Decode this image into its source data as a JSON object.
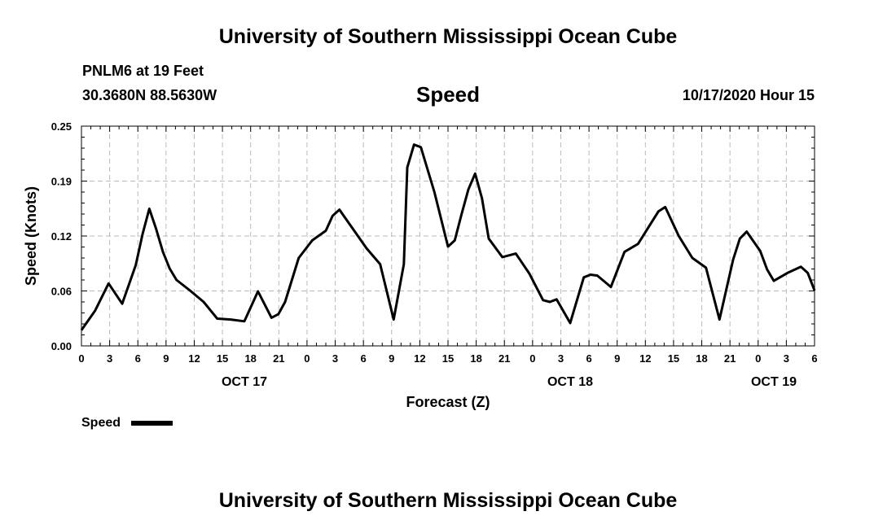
{
  "header": {
    "title": "University of Southern Mississippi Ocean Cube",
    "station": "PNLM6 at 19 Feet",
    "coords": "30.3680N 88.5630W",
    "plot_title": "Speed",
    "datetime": "10/17/2020 Hour 15"
  },
  "footer": {
    "title": "University of Southern Mississippi Ocean Cube"
  },
  "colors": {
    "line": "#000000",
    "grid": "#bbbbbb",
    "axis": "#000000",
    "background": "#ffffff"
  },
  "chart_data": {
    "type": "line",
    "title": "Speed",
    "xlabel": "Forecast (Z)",
    "ylabel": "Speed (Knots)",
    "ylim": [
      0,
      0.25
    ],
    "xlim": [
      "2020-10-17T00:00Z",
      "2020-10-19T06:00Z"
    ],
    "yticks": [
      "0.00",
      "0.06",
      "0.12",
      "0.19",
      "0.25"
    ],
    "xticks": [
      "0",
      "3",
      "6",
      "9",
      "12",
      "15",
      "18",
      "21",
      "0",
      "3",
      "6",
      "9",
      "12",
      "15",
      "18",
      "21",
      "0",
      "3",
      "6",
      "9",
      "12",
      "15",
      "18",
      "21",
      "0",
      "3",
      "6"
    ],
    "date_labels": [
      {
        "label": "OCT 17",
        "x": "2020-10-17T12:00Z"
      },
      {
        "label": "OCT 18",
        "x": "2020-10-18T12:00Z"
      },
      {
        "label": "OCT 19",
        "x": "2020-10-19T03:00Z"
      }
    ],
    "grid": true,
    "legend": "bottom-left",
    "series": [
      {
        "name": "Speed",
        "points": [
          [
            "2020-10-17T00:00Z",
            0.018
          ],
          [
            "2020-10-17T01:00Z",
            0.04
          ],
          [
            "2020-10-17T02:00Z",
            0.071
          ],
          [
            "2020-10-17T03:00Z",
            0.048
          ],
          [
            "2020-10-17T04:00Z",
            0.092
          ],
          [
            "2020-10-17T04:30Z",
            0.127
          ],
          [
            "2020-10-17T05:00Z",
            0.156
          ],
          [
            "2020-10-17T05:30Z",
            0.133
          ],
          [
            "2020-10-17T06:00Z",
            0.107
          ],
          [
            "2020-10-17T06:30Z",
            0.088
          ],
          [
            "2020-10-17T07:00Z",
            0.075
          ],
          [
            "2020-10-17T08:00Z",
            0.063
          ],
          [
            "2020-10-17T09:00Z",
            0.05
          ],
          [
            "2020-10-17T10:00Z",
            0.031
          ],
          [
            "2020-10-17T11:00Z",
            0.03
          ],
          [
            "2020-10-17T12:00Z",
            0.028
          ],
          [
            "2020-10-17T13:00Z",
            0.062
          ],
          [
            "2020-10-17T14:00Z",
            0.032
          ],
          [
            "2020-10-17T14:30Z",
            0.036
          ],
          [
            "2020-10-17T15:00Z",
            0.05
          ],
          [
            "2020-10-17T16:00Z",
            0.1
          ],
          [
            "2020-10-17T17:00Z",
            0.12
          ],
          [
            "2020-10-17T18:00Z",
            0.131
          ],
          [
            "2020-10-17T18:30Z",
            0.148
          ],
          [
            "2020-10-17T19:00Z",
            0.155
          ],
          [
            "2020-10-17T21:00Z",
            0.111
          ],
          [
            "2020-10-17T22:00Z",
            0.093
          ],
          [
            "2020-10-17T23:00Z",
            0.03
          ],
          [
            "2020-10-17T23:45Z",
            0.093
          ],
          [
            "2020-10-18T00:00Z",
            0.203
          ],
          [
            "2020-10-18T00:30Z",
            0.229
          ],
          [
            "2020-10-18T01:00Z",
            0.226
          ],
          [
            "2020-10-18T02:00Z",
            0.175
          ],
          [
            "2020-10-18T03:00Z",
            0.113
          ],
          [
            "2020-10-18T03:30Z",
            0.12
          ],
          [
            "2020-10-18T04:00Z",
            0.15
          ],
          [
            "2020-10-18T04:30Z",
            0.178
          ],
          [
            "2020-10-18T05:00Z",
            0.196
          ],
          [
            "2020-10-18T05:30Z",
            0.168
          ],
          [
            "2020-10-18T06:00Z",
            0.122
          ],
          [
            "2020-10-18T07:00Z",
            0.101
          ],
          [
            "2020-10-18T08:00Z",
            0.105
          ],
          [
            "2020-10-18T09:00Z",
            0.082
          ],
          [
            "2020-10-18T10:00Z",
            0.052
          ],
          [
            "2020-10-18T10:30Z",
            0.05
          ],
          [
            "2020-10-18T11:00Z",
            0.053
          ],
          [
            "2020-10-18T12:00Z",
            0.026
          ],
          [
            "2020-10-18T13:00Z",
            0.078
          ],
          [
            "2020-10-18T13:30Z",
            0.081
          ],
          [
            "2020-10-18T14:00Z",
            0.08
          ],
          [
            "2020-10-18T15:00Z",
            0.067
          ],
          [
            "2020-10-18T16:00Z",
            0.107
          ],
          [
            "2020-10-18T17:00Z",
            0.116
          ],
          [
            "2020-10-18T18:30Z",
            0.153
          ],
          [
            "2020-10-18T19:00Z",
            0.158
          ],
          [
            "2020-10-18T20:00Z",
            0.125
          ],
          [
            "2020-10-18T21:00Z",
            0.1
          ],
          [
            "2020-10-18T22:00Z",
            0.089
          ],
          [
            "2020-10-18T23:00Z",
            0.03
          ],
          [
            "2020-10-19T00:00Z",
            0.098
          ],
          [
            "2020-10-19T00:30Z",
            0.122
          ],
          [
            "2020-10-19T01:00Z",
            0.13
          ],
          [
            "2020-10-19T02:00Z",
            0.108
          ],
          [
            "2020-10-19T02:30Z",
            0.087
          ],
          [
            "2020-10-19T03:00Z",
            0.074
          ],
          [
            "2020-10-19T04:00Z",
            0.083
          ],
          [
            "2020-10-19T05:00Z",
            0.09
          ],
          [
            "2020-10-19T05:30Z",
            0.083
          ],
          [
            "2020-10-19T06:00Z",
            0.063
          ]
        ]
      }
    ]
  }
}
